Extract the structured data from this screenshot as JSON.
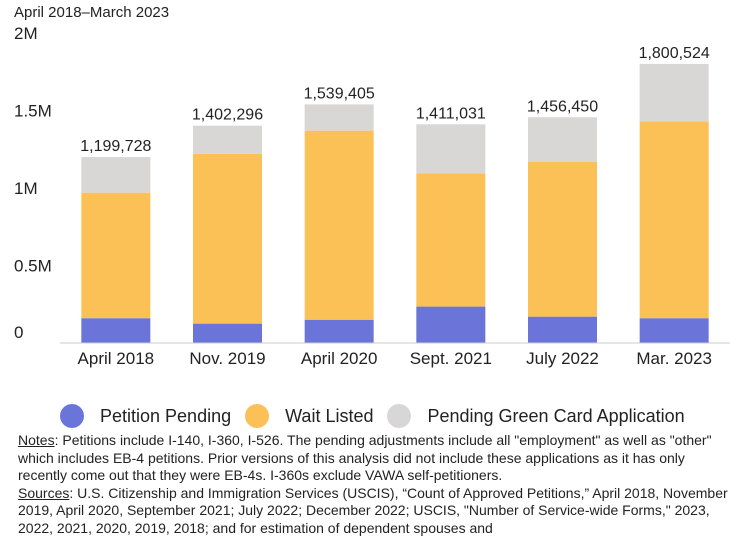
{
  "chart_data": {
    "type": "bar",
    "stacked": true,
    "subtitle": "April 2018–March 2023",
    "categories": [
      "April 2018",
      "Nov. 2019",
      "April 2020",
      "Sept. 2021",
      "July 2022",
      "Mar. 2023"
    ],
    "totals_labels": [
      "1,199,728",
      "1,402,296",
      "1,539,405",
      "1,411,031",
      "1,456,450",
      "1,800,524"
    ],
    "series": [
      {
        "name": "Petition Pending",
        "color": "#6b74d9",
        "values": [
          160000,
          125000,
          150000,
          235000,
          170000,
          160000
        ]
      },
      {
        "name": "Wait Listed",
        "color": "#fcc156",
        "values": [
          810000,
          1095000,
          1220000,
          860000,
          1000000,
          1270000
        ]
      },
      {
        "name": "Pending Green Card Application",
        "color": "#d9d6d6",
        "values": [
          229728,
          182296,
          169405,
          316031,
          286450,
          370524
        ]
      }
    ],
    "ylim": [
      0,
      2000000
    ],
    "yticks": [
      0,
      500000,
      1000000,
      1500000,
      2000000
    ],
    "ytick_labels": [
      "0",
      "0.5M",
      "1M",
      "1.5M",
      "2M"
    ],
    "grid": false,
    "legend_position": "bottom"
  },
  "notes": {
    "notes_label": "Notes",
    "notes_text": ": Petitions include I-140, I-360, I-526. The pending adjustments include all \"employment\" as well as \"other\" which includes EB-4 petitions. Prior versions of this analysis did not include these applications as it has only recently come out that they were EB-4s. I-360s exclude VAWA self-petitioners.",
    "sources_label": "Sources",
    "sources_text": ": U.S. Citizenship and Immigration Services (USCIS), “Count of Approved Petitions,” April 2018, November 2019, April 2020, September 2021; July 2022; December 2022; USCIS, \"Number of Service-wide Forms,\" 2023, 2022, 2021, 2020, 2019, 2018; and for estimation of dependent spouses and"
  }
}
